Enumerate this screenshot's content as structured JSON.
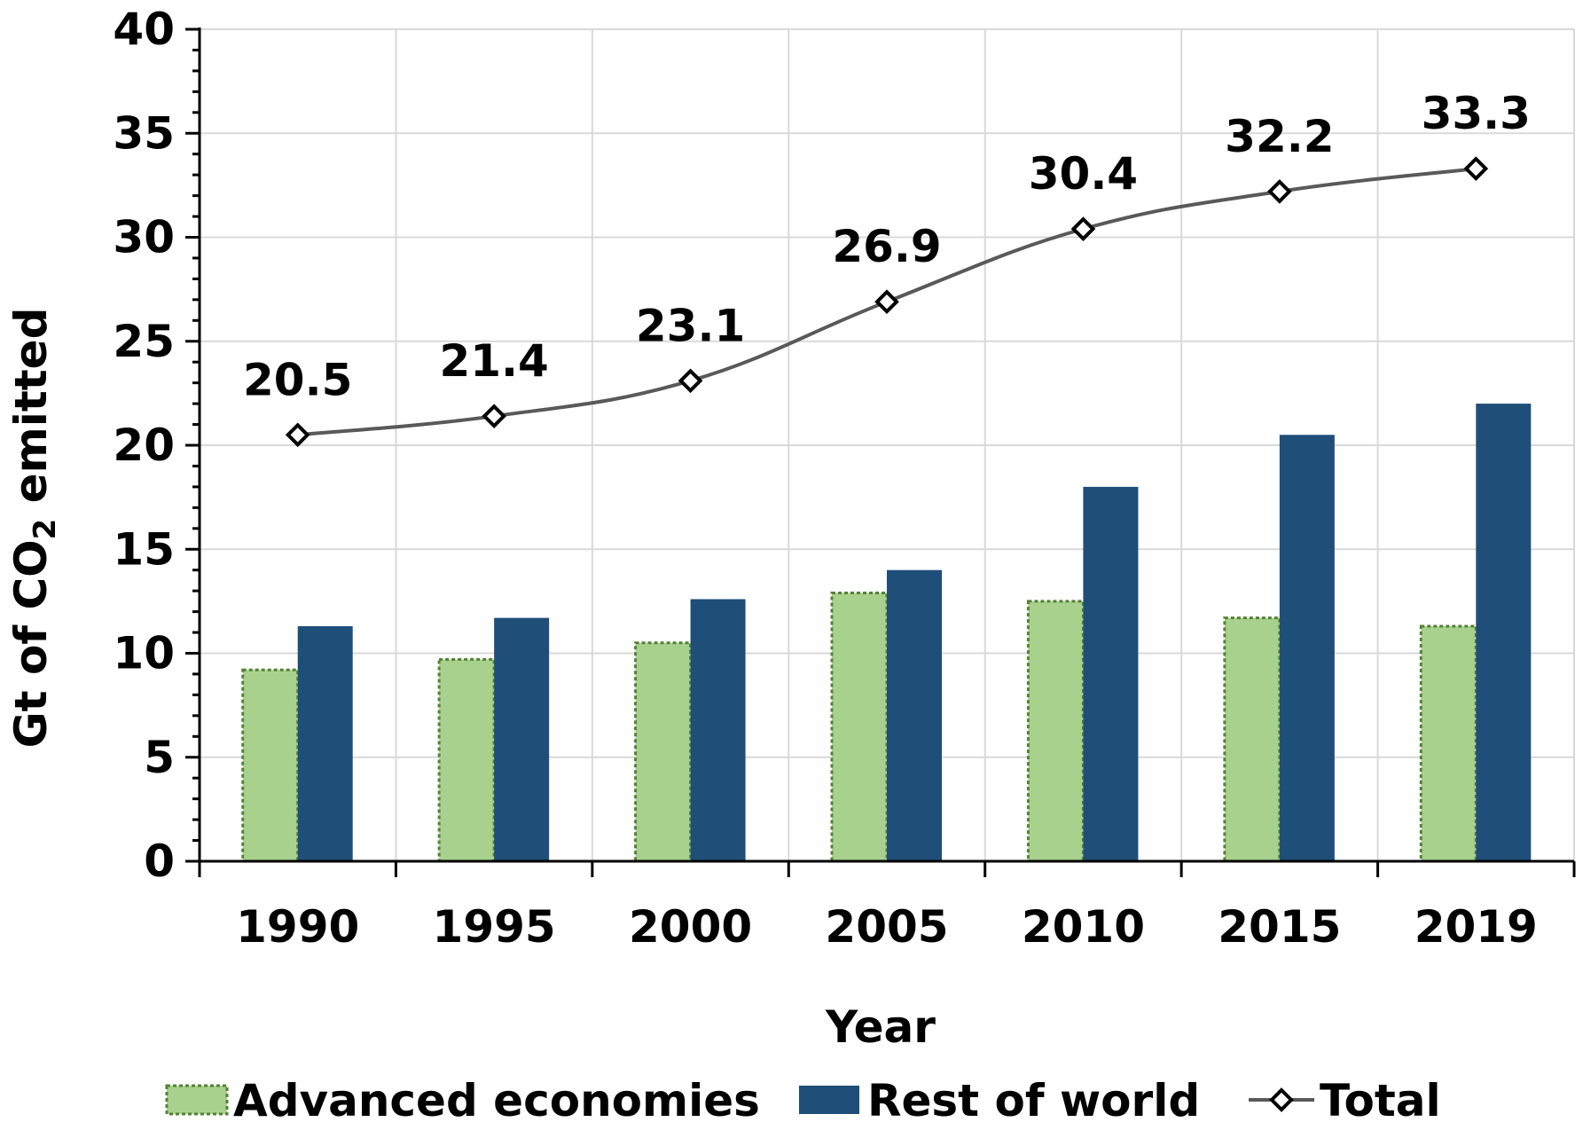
{
  "chart_data": {
    "type": "bar",
    "categories": [
      "1990",
      "1995",
      "2000",
      "2005",
      "2010",
      "2015",
      "2019"
    ],
    "series": [
      {
        "name": "Advanced economies",
        "kind": "bar",
        "values": [
          9.2,
          9.7,
          10.5,
          12.9,
          12.5,
          11.7,
          11.3
        ],
        "color": "#a9d18e",
        "border": "#548235"
      },
      {
        "name": "Rest of world",
        "kind": "bar",
        "values": [
          11.3,
          11.7,
          12.6,
          14.0,
          18.0,
          20.5,
          22.0
        ],
        "color": "#1f4e79"
      },
      {
        "name": "Total",
        "kind": "line",
        "values": [
          20.5,
          21.4,
          23.1,
          26.9,
          30.4,
          32.2,
          33.3
        ],
        "labels": [
          "20.5",
          "21.4",
          "23.1",
          "26.9",
          "30.4",
          "32.2",
          "33.3"
        ],
        "color": "#595959",
        "marker": "diamond"
      }
    ],
    "xlabel": "Year",
    "ylabel": {
      "prefix": "Gt of CO",
      "subscript": "2",
      "suffix": " emitted"
    },
    "ylim": [
      0,
      40
    ],
    "yticks": [
      "0",
      "5",
      "10",
      "15",
      "20",
      "25",
      "30",
      "35",
      "40"
    ],
    "grid": true,
    "legend_position": "bottom"
  }
}
